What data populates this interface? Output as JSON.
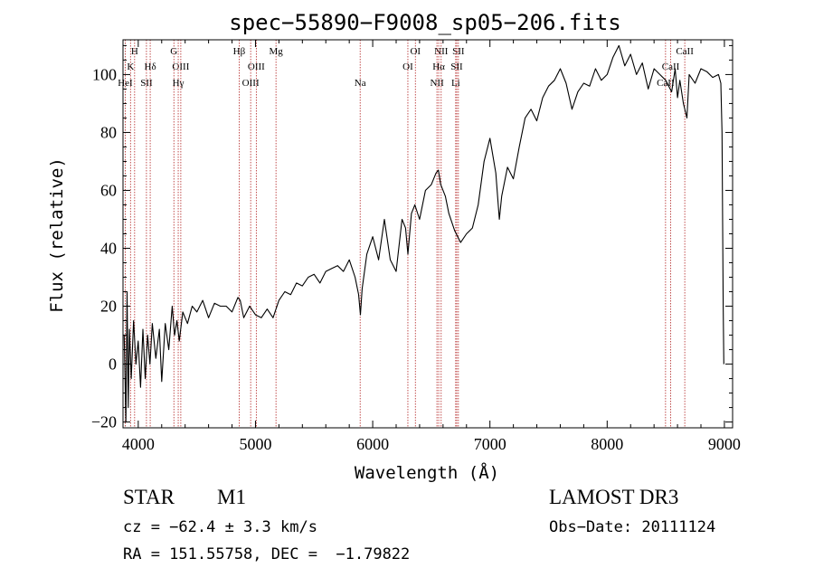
{
  "chart_data": {
    "type": "line",
    "title": "spec−55890−F9008_sp05−206.fits",
    "xlabel": "Wavelength (Å)",
    "ylabel": "Flux (relative)",
    "xlim": [
      3870,
      9070
    ],
    "ylim": [
      -22,
      112
    ],
    "xticks": [
      4000,
      5000,
      6000,
      7000,
      8000,
      9000
    ],
    "yticks": [
      -20,
      0,
      20,
      40,
      60,
      80,
      100
    ],
    "series": [
      {
        "name": "spectrum",
        "x": [
          3880,
          3895,
          3905,
          3915,
          3925,
          3940,
          3960,
          3980,
          4000,
          4020,
          4040,
          4060,
          4080,
          4100,
          4120,
          4150,
          4180,
          4200,
          4230,
          4260,
          4290,
          4310,
          4330,
          4350,
          4380,
          4420,
          4460,
          4500,
          4550,
          4600,
          4650,
          4700,
          4750,
          4800,
          4850,
          4870,
          4900,
          4950,
          5000,
          5050,
          5100,
          5150,
          5200,
          5250,
          5300,
          5350,
          5400,
          5450,
          5500,
          5550,
          5600,
          5650,
          5700,
          5750,
          5800,
          5850,
          5880,
          5895,
          5910,
          5950,
          6000,
          6050,
          6100,
          6150,
          6200,
          6250,
          6280,
          6300,
          6330,
          6360,
          6400,
          6450,
          6500,
          6540,
          6560,
          6580,
          6620,
          6650,
          6700,
          6750,
          6800,
          6850,
          6900,
          6950,
          7000,
          7050,
          7080,
          7100,
          7150,
          7200,
          7250,
          7300,
          7350,
          7400,
          7450,
          7500,
          7550,
          7600,
          7650,
          7700,
          7750,
          7800,
          7850,
          7900,
          7950,
          8000,
          8050,
          8100,
          8150,
          8200,
          8250,
          8300,
          8350,
          8400,
          8450,
          8500,
          8550,
          8580,
          8600,
          8620,
          8650,
          8680,
          8700,
          8750,
          8800,
          8850,
          8900,
          8950,
          8970,
          8980,
          8990,
          8995
        ],
        "y": [
          10,
          -20,
          25,
          -15,
          12,
          -5,
          15,
          0,
          8,
          -8,
          12,
          -5,
          10,
          0,
          14,
          2,
          12,
          -6,
          14,
          5,
          20,
          10,
          15,
          8,
          18,
          14,
          20,
          18,
          22,
          16,
          21,
          20,
          20,
          18,
          23,
          22,
          16,
          20,
          17,
          16,
          19,
          16,
          22,
          25,
          24,
          28,
          27,
          30,
          31,
          28,
          32,
          33,
          34,
          32,
          36,
          30,
          24,
          17,
          26,
          38,
          44,
          36,
          50,
          36,
          32,
          50,
          47,
          38,
          52,
          55,
          50,
          60,
          62,
          66,
          67,
          62,
          58,
          52,
          46,
          42,
          45,
          47,
          55,
          70,
          78,
          66,
          50,
          58,
          68,
          64,
          75,
          85,
          88,
          84,
          92,
          96,
          98,
          102,
          97,
          88,
          94,
          97,
          96,
          102,
          98,
          100,
          106,
          110,
          103,
          107,
          100,
          104,
          95,
          102,
          100,
          98,
          94,
          102,
          92,
          98,
          90,
          85,
          100,
          97,
          102,
          101,
          99,
          100,
          97,
          80,
          20,
          0
        ]
      }
    ],
    "lines": [
      {
        "label": "H",
        "wave": 3969,
        "row": 0
      },
      {
        "label": "K",
        "wave": 3934,
        "row": 1
      },
      {
        "label": "HeI",
        "wave": 3889,
        "row": 2
      },
      {
        "label": "SII",
        "wave": 4070,
        "row": 2
      },
      {
        "label": "Hδ",
        "wave": 4102,
        "row": 1
      },
      {
        "label": "G",
        "wave": 4304,
        "row": 0
      },
      {
        "label": "OIII",
        "wave": 4363,
        "row": 1
      },
      {
        "label": "Hγ",
        "wave": 4341,
        "row": 2
      },
      {
        "label": "Hβ",
        "wave": 4861,
        "row": 0
      },
      {
        "label": "OIII",
        "wave": 5007,
        "row": 1
      },
      {
        "label": "OIII",
        "wave": 4959,
        "row": 2
      },
      {
        "label": "Mg",
        "wave": 5175,
        "row": 0
      },
      {
        "label": "Na",
        "wave": 5893,
        "row": 2
      },
      {
        "label": "OI",
        "wave": 6364,
        "row": 0
      },
      {
        "label": "OI",
        "wave": 6300,
        "row": 1
      },
      {
        "label": "NII",
        "wave": 6584,
        "row": 0
      },
      {
        "label": "Hα",
        "wave": 6563,
        "row": 1
      },
      {
        "label": "NII",
        "wave": 6548,
        "row": 2
      },
      {
        "label": "SII",
        "wave": 6731,
        "row": 0
      },
      {
        "label": "SII",
        "wave": 6717,
        "row": 1
      },
      {
        "label": "Li",
        "wave": 6708,
        "row": 2
      },
      {
        "label": "CaII",
        "wave": 8662,
        "row": 0
      },
      {
        "label": "CaII",
        "wave": 8542,
        "row": 1
      },
      {
        "label": "CaII",
        "wave": 8498,
        "row": 2
      }
    ]
  },
  "footer": {
    "object_type": "STAR",
    "subclass": "M1",
    "survey": "LAMOST DR3",
    "cz": "cz = −62.4 ± 3.3 km/s",
    "obs_date": "Obs−Date: 20111124",
    "coords": "RA = 151.55758, DEC =  −1.79822"
  },
  "colors": {
    "axis": "#000000",
    "spectrum": "#000000",
    "line_marker": "#b22222"
  }
}
